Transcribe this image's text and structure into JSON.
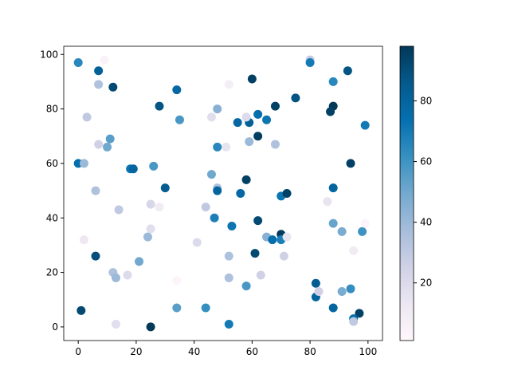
{
  "chart_data": {
    "type": "scatter",
    "x": [
      0,
      7,
      9,
      7,
      12,
      3,
      34,
      28,
      35,
      48,
      46,
      60,
      52,
      80,
      80,
      88,
      93,
      99,
      68,
      75,
      88,
      87,
      62,
      59,
      55,
      58,
      65,
      62,
      59,
      68,
      51,
      48,
      11,
      10,
      7,
      0,
      2,
      26,
      18,
      19,
      30,
      48,
      48,
      46,
      58,
      56,
      70,
      72,
      88,
      94,
      6,
      14,
      25,
      28,
      44,
      47,
      62,
      86,
      88,
      91,
      98,
      99,
      53,
      25,
      24,
      41,
      2,
      65,
      67,
      70,
      70,
      72,
      52,
      61,
      71,
      6,
      21,
      12,
      13,
      17,
      34,
      52,
      63,
      58,
      95,
      82,
      82,
      83,
      91,
      94,
      1,
      13,
      34,
      44,
      52,
      25,
      88,
      97,
      95,
      95
    ],
    "values": [
      97,
      94,
      98,
      89,
      88,
      77,
      87,
      81,
      76,
      80,
      77,
      91,
      89,
      98,
      97,
      90,
      94,
      74,
      81,
      84,
      81,
      79,
      78,
      75,
      75,
      77,
      76,
      70,
      68,
      67,
      66,
      66,
      69,
      66,
      67,
      60,
      60,
      59,
      58,
      58,
      51,
      51,
      50,
      56,
      54,
      49,
      48,
      49,
      51,
      60,
      50,
      43,
      45,
      44,
      44,
      40,
      39,
      46,
      38,
      35,
      35,
      38,
      37,
      36,
      33,
      31,
      32,
      33,
      32,
      34,
      32,
      33,
      26,
      27,
      26,
      26,
      24,
      20,
      18,
      19,
      17,
      18,
      19,
      15,
      28,
      16,
      11,
      13,
      13,
      14,
      6,
      1,
      7,
      7,
      1,
      0,
      7,
      5,
      3,
      2
    ],
    "colors": [
      65,
      82,
      5,
      35,
      92,
      30,
      78,
      88,
      58,
      45,
      18,
      95,
      8,
      30,
      70,
      65,
      88,
      70,
      95,
      88,
      98,
      95,
      75,
      82,
      78,
      20,
      72,
      96,
      40,
      35,
      15,
      65,
      55,
      50,
      25,
      75,
      40,
      58,
      72,
      80,
      85,
      35,
      80,
      50,
      95,
      78,
      72,
      95,
      80,
      95,
      35,
      30,
      22,
      10,
      30,
      68,
      92,
      15,
      52,
      48,
      60,
      3,
      72,
      18,
      40,
      20,
      12,
      45,
      75,
      97,
      68,
      15,
      35,
      92,
      25,
      90,
      50,
      35,
      40,
      20,
      3,
      35,
      25,
      58,
      10,
      85,
      80,
      25,
      48,
      62,
      92,
      18,
      55,
      62,
      70,
      98,
      80,
      95,
      75,
      30
    ],
    "colormap": "PuBu",
    "clim": [
      1,
      98
    ],
    "cticks": [
      20,
      40,
      60,
      80
    ],
    "xlim": [
      -5,
      105
    ],
    "xticks": [
      0,
      20,
      40,
      60,
      80,
      100
    ],
    "ylim": [
      -5,
      103
    ],
    "yticks": [
      0,
      20,
      40,
      60,
      80,
      100
    ]
  }
}
